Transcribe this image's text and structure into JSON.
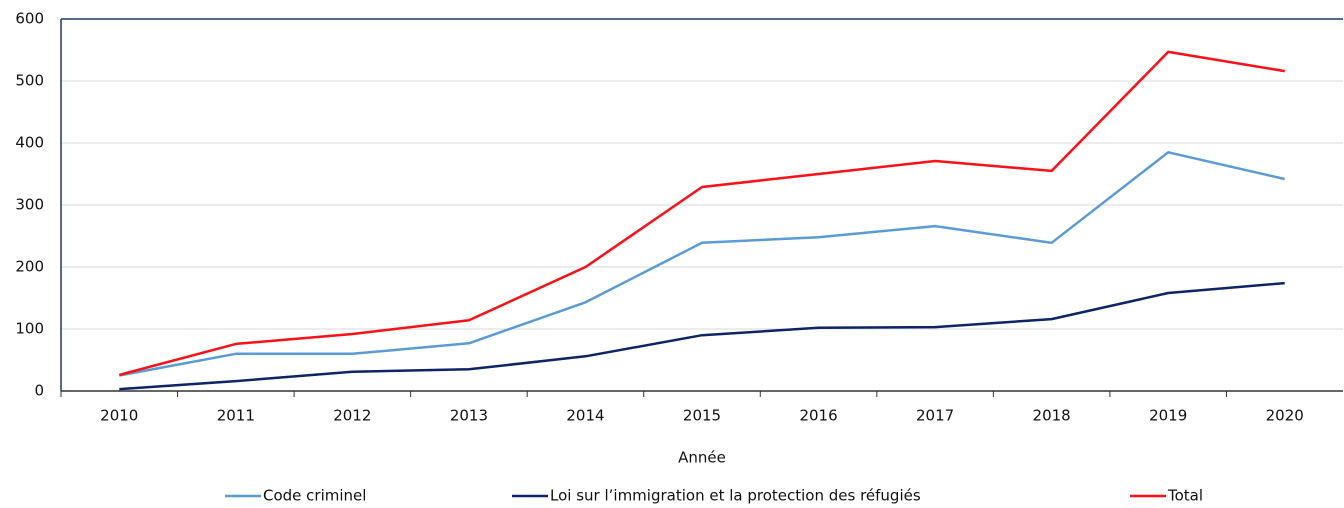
{
  "chart_data": {
    "type": "line",
    "x_label": "Année",
    "categories": [
      "2010",
      "2011",
      "2012",
      "2013",
      "2014",
      "2015",
      "2016",
      "2017",
      "2018",
      "2019",
      "2020"
    ],
    "series": [
      {
        "name": "Code criminel",
        "color": "#5b9bd5",
        "values": [
          25,
          60,
          60,
          77,
          143,
          239,
          248,
          266,
          239,
          385,
          342
        ]
      },
      {
        "name": "Loi sur l’immigration et la protection des réfugiés",
        "color": "#0d2466",
        "values": [
          3,
          16,
          31,
          35,
          56,
          90,
          102,
          103,
          116,
          158,
          174
        ]
      },
      {
        "name": "Total",
        "color": "#ff0f16",
        "values": [
          26,
          76,
          92,
          114,
          200,
          329,
          350,
          371,
          355,
          547,
          516
        ]
      }
    ],
    "ylim": [
      0,
      600
    ],
    "yticks": [
      0,
      100,
      200,
      300,
      400,
      500,
      600
    ],
    "grid": true,
    "legend": "bottom"
  }
}
